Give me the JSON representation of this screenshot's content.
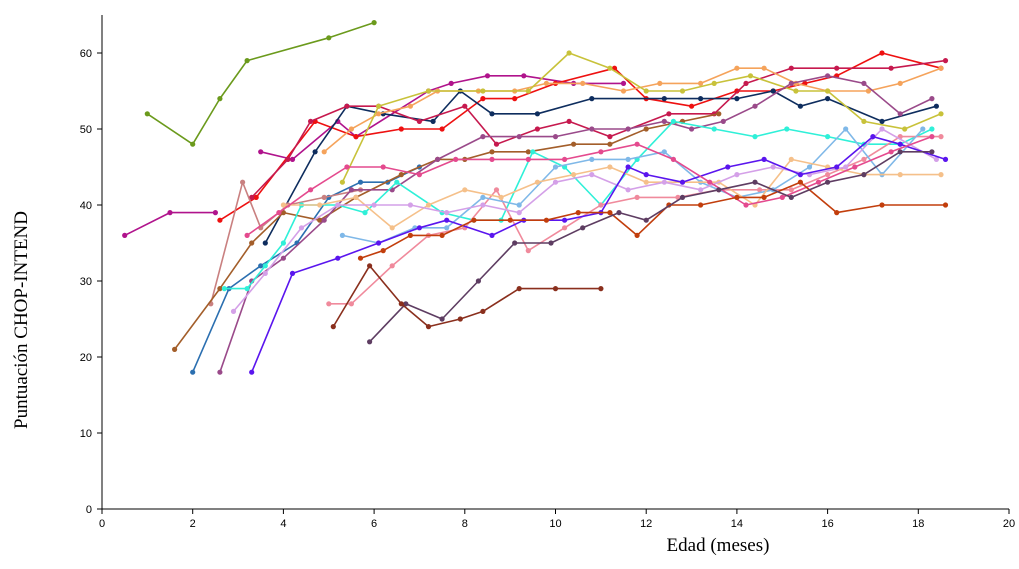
{
  "chart_data": {
    "type": "line",
    "title": "",
    "xlabel": "Edad (meses)",
    "ylabel": "Puntuación CHOP-INTEND",
    "xlim": [
      0,
      20
    ],
    "ylim": [
      0,
      65
    ],
    "x_ticks": [
      0,
      2,
      4,
      6,
      8,
      10,
      12,
      14,
      16,
      18,
      20
    ],
    "y_ticks": [
      0,
      10,
      20,
      30,
      40,
      50,
      60
    ],
    "grid": false,
    "legend": "none",
    "series": [
      {
        "color": "#6b9a1c",
        "x": [
          1.0,
          2.0,
          2.6,
          3.2,
          5.0,
          6.0
        ],
        "y": [
          52,
          48,
          54,
          59,
          62,
          64
        ]
      },
      {
        "color": "#b0138c",
        "x": [
          0.5,
          1.5,
          2.5
        ],
        "y": [
          36,
          39,
          39
        ]
      },
      {
        "color": "#b0138c",
        "x": [
          3.5,
          4.2,
          5.2,
          5.6,
          7.2,
          7.7,
          8.5,
          9.3,
          10.4,
          11.5
        ],
        "y": [
          47,
          46,
          51,
          49,
          55,
          56,
          57,
          57,
          56,
          56
        ]
      },
      {
        "color": "#ee1010",
        "x": [
          2.6,
          3.4,
          4.7,
          5.6,
          6.6,
          7.5,
          8.4,
          9.1,
          10.0,
          11.3,
          12.0,
          13.0,
          14.0,
          14.8,
          15.5,
          16.2,
          17.2,
          18.5
        ],
        "y": [
          38,
          41,
          51,
          49,
          50,
          50,
          54,
          54,
          56,
          58,
          54,
          53,
          55,
          55,
          56,
          57,
          60,
          58
        ]
      },
      {
        "color": "#0e2d5e",
        "x": [
          3.6,
          4.7,
          5.4,
          6.2,
          7.3,
          7.9,
          8.6,
          9.6,
          10.8,
          12.4,
          13.2,
          14.0,
          14.8,
          15.4,
          16.0,
          17.2,
          18.4
        ],
        "y": [
          35,
          47,
          53,
          52,
          51,
          55,
          52,
          52,
          54,
          54,
          54,
          54,
          55,
          53,
          54,
          51,
          53
        ]
      },
      {
        "color": "#c6194e",
        "x": [
          3.3,
          4.1,
          4.6,
          5.4,
          6.1,
          7.0,
          8.0,
          8.7,
          9.6,
          10.3,
          11.2,
          12.5,
          13.5,
          14.2,
          15.2,
          16.2,
          17.4,
          18.6
        ],
        "y": [
          41,
          46,
          51,
          53,
          53,
          51,
          53,
          48,
          50,
          51,
          49,
          52,
          52,
          56,
          58,
          58,
          58,
          59
        ]
      },
      {
        "color": "#f5a35b",
        "x": [
          4.9,
          5.5,
          6.1,
          6.8,
          7.4,
          8.3,
          9.1,
          9.8,
          10.6,
          11.5,
          12.3,
          13.2,
          14.0,
          14.6,
          15.3,
          16.0,
          16.9,
          17.6,
          18.5
        ],
        "y": [
          47,
          50,
          52,
          53,
          55,
          55,
          55,
          56,
          56,
          55,
          56,
          56,
          58,
          58,
          56,
          55,
          55,
          56,
          58
        ]
      },
      {
        "color": "#c8c23a",
        "x": [
          5.3,
          6.1,
          7.2,
          8.4,
          9.4,
          10.3,
          11.2,
          12.0,
          12.8,
          13.5,
          14.3,
          15.3,
          16.0,
          16.8,
          17.7,
          18.5
        ],
        "y": [
          43,
          53,
          55,
          55,
          55,
          60,
          58,
          55,
          55,
          56,
          57,
          55,
          55,
          51,
          50,
          52
        ]
      },
      {
        "color": "#2b6fb0",
        "x": [
          2.0,
          2.8,
          3.5,
          4.3,
          5.0,
          5.7,
          6.3,
          7.0
        ],
        "y": [
          18,
          29,
          32,
          35,
          41,
          43,
          43,
          45
        ]
      },
      {
        "color": "#c98080",
        "x": [
          2.4,
          3.1,
          3.5,
          4.1,
          4.9,
          5.7
        ],
        "y": [
          27,
          43,
          37,
          40,
          41,
          42
        ]
      },
      {
        "color": "#a35e2a",
        "x": [
          1.6,
          2.6,
          3.3,
          4.0,
          4.8,
          5.6,
          6.6,
          7.4,
          8.0,
          8.6,
          9.4,
          10.4,
          11.2,
          12.0,
          12.8,
          13.6
        ],
        "y": [
          21,
          29,
          35,
          39,
          38,
          41,
          44,
          46,
          46,
          47,
          47,
          48,
          48,
          50,
          51,
          52
        ]
      },
      {
        "color": "#9a4a8a",
        "x": [
          2.6,
          3.3,
          4.0,
          4.9,
          5.5,
          6.4,
          7.4,
          8.4,
          9.2,
          10.0,
          10.8,
          11.6,
          12.4,
          13.0,
          13.7,
          14.4,
          15.2,
          16.0,
          16.8,
          17.6,
          18.3
        ],
        "y": [
          18,
          30,
          33,
          38,
          42,
          42,
          46,
          49,
          49,
          49,
          50,
          50,
          51,
          50,
          51,
          53,
          56,
          57,
          56,
          52,
          54
        ]
      },
      {
        "color": "#2ff0d8",
        "x": [
          2.7,
          3.2,
          3.6,
          4.0,
          4.4,
          5.2,
          5.8,
          6.5,
          7.5,
          8.2,
          8.8,
          9.5,
          10.2,
          11.0,
          11.8,
          12.6,
          13.5,
          14.4,
          15.1,
          16.0,
          16.8,
          17.6,
          18.3
        ],
        "y": [
          29,
          29,
          32,
          35,
          40,
          40,
          39,
          43,
          39,
          38,
          38,
          47,
          45,
          40,
          46,
          51,
          50,
          49,
          50,
          49,
          48,
          48,
          50
        ]
      },
      {
        "color": "#f08a9c",
        "x": [
          5.0,
          5.5,
          6.4,
          7.2,
          8.0,
          8.7,
          9.4,
          10.2,
          11.0,
          11.8,
          12.7,
          13.6,
          14.5,
          15.2,
          16.0,
          16.8,
          17.6,
          18.5
        ],
        "y": [
          27,
          27,
          32,
          36,
          37,
          42,
          34,
          37,
          40,
          41,
          41,
          42,
          42,
          42,
          44,
          46,
          49,
          49
        ]
      },
      {
        "color": "#7fb8e8",
        "x": [
          5.3,
          6.1,
          6.9,
          7.6,
          8.4,
          9.2,
          10.0,
          10.8,
          11.6,
          12.4,
          13.2,
          14.0,
          14.8,
          15.6,
          16.4,
          17.2,
          18.1
        ],
        "y": [
          36,
          35,
          37,
          37,
          41,
          40,
          45,
          46,
          46,
          47,
          43,
          41,
          42,
          45,
          50,
          44,
          50
        ]
      },
      {
        "color": "#f5c08a",
        "x": [
          4.0,
          4.8,
          5.6,
          6.4,
          7.2,
          8.0,
          8.8,
          9.6,
          10.4,
          11.2,
          12.0,
          12.8,
          13.6,
          14.4,
          15.2,
          16.0,
          16.8,
          17.6,
          18.5
        ],
        "y": [
          40,
          40,
          41,
          37,
          40,
          42,
          41,
          43,
          44,
          45,
          43,
          43,
          43,
          40,
          46,
          45,
          44,
          44,
          44
        ]
      },
      {
        "color": "#d4a0e8",
        "x": [
          2.9,
          3.6,
          4.4,
          5.2,
          6.0,
          6.8,
          7.6,
          8.4,
          9.2,
          10.0,
          10.8,
          11.6,
          12.4,
          13.2,
          14.0,
          14.8,
          15.6,
          16.4,
          17.2,
          18.4
        ],
        "y": [
          26,
          31,
          37,
          40,
          40,
          40,
          39,
          40,
          39,
          43,
          44,
          42,
          43,
          42,
          44,
          45,
          44,
          45,
          50,
          46
        ]
      },
      {
        "color": "#5a15ee",
        "x": [
          3.3,
          4.2,
          5.2,
          6.1,
          7.0,
          7.6,
          8.6,
          9.3,
          10.2,
          11.0,
          11.6,
          12.0,
          12.8,
          13.8,
          14.6,
          15.4,
          16.2,
          17.0,
          17.6,
          18.6
        ],
        "y": [
          18,
          31,
          33,
          35,
          37,
          38,
          36,
          38,
          38,
          39,
          45,
          44,
          43,
          45,
          46,
          44,
          45,
          49,
          48,
          46
        ]
      },
      {
        "color": "#e44a8e",
        "x": [
          3.2,
          3.9,
          4.6,
          5.4,
          6.2,
          7.0,
          7.8,
          8.6,
          9.4,
          10.2,
          11.0,
          11.8,
          12.6,
          13.4,
          14.2,
          15.0,
          15.8,
          16.6,
          17.4,
          18.3
        ],
        "y": [
          36,
          39,
          42,
          45,
          45,
          44,
          46,
          46,
          46,
          46,
          47,
          48,
          46,
          43,
          40,
          41,
          43,
          45,
          47,
          49
        ]
      },
      {
        "color": "#c23e0c",
        "x": [
          5.7,
          6.2,
          6.8,
          7.5,
          8.2,
          9.0,
          9.8,
          10.5,
          11.2,
          11.8,
          12.5,
          13.2,
          14.0,
          14.6,
          15.4,
          16.2,
          17.2,
          18.6
        ],
        "y": [
          33,
          34,
          36,
          36,
          38,
          38,
          38,
          39,
          39,
          36,
          40,
          40,
          41,
          41,
          43,
          39,
          40,
          40
        ]
      },
      {
        "color": "#5e3d62",
        "x": [
          5.9,
          6.7,
          7.5,
          8.3,
          9.1,
          9.9,
          10.6,
          11.4,
          12.0,
          12.8,
          13.6,
          14.4,
          15.2,
          16.0,
          16.8,
          17.6,
          18.3
        ],
        "y": [
          22,
          27,
          25,
          30,
          35,
          35,
          37,
          39,
          38,
          41,
          42,
          43,
          41,
          43,
          44,
          47,
          47
        ]
      },
      {
        "color": "#8a2f1d",
        "x": [
          5.1,
          5.9,
          6.6,
          7.2,
          7.9,
          8.4,
          9.2,
          10.0,
          11.0
        ],
        "y": [
          24,
          32,
          27,
          24,
          25,
          26,
          29,
          29,
          29
        ]
      }
    ]
  }
}
